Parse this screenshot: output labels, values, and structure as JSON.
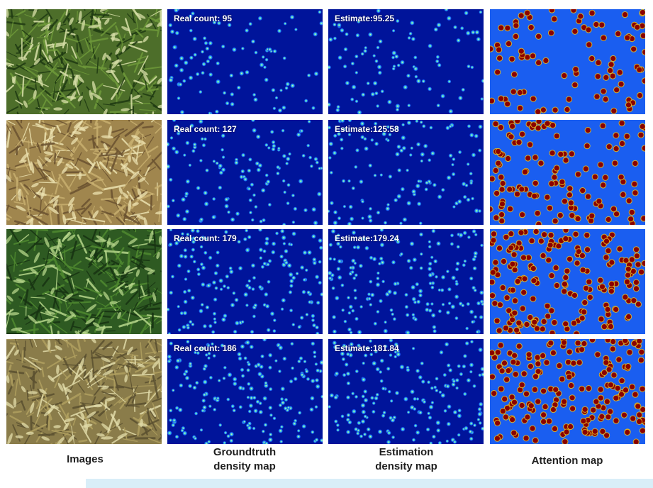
{
  "figure": {
    "column_titles": [
      "Images",
      "Groundtruth density map",
      "Estimation density map",
      "Attention map"
    ],
    "column_title_lines": [
      [
        "Images"
      ],
      [
        "Groundtruth",
        "density map"
      ],
      [
        "Estimation",
        "density map"
      ],
      [
        "Attention map"
      ]
    ],
    "rows": [
      {
        "image": "wheat-field-image",
        "real_count_label": "Real count: 95",
        "estimate_label": "Estimate:95.25"
      },
      {
        "image": "wheat-field-image",
        "real_count_label": "Real count: 127",
        "estimate_label": "Estimate:125.58"
      },
      {
        "image": "wheat-field-image",
        "real_count_label": "Real count: 179",
        "estimate_label": "Estimate:179.24"
      },
      {
        "image": "wheat-field-image",
        "real_count_label": "Real count: 186",
        "estimate_label": "Estimate:181.84"
      }
    ],
    "colors": {
      "density_background": "#00149a",
      "attention_background": "#1a5ef0",
      "attention_dot": "#8b0000",
      "caption_strip": "#d9eef8"
    }
  }
}
